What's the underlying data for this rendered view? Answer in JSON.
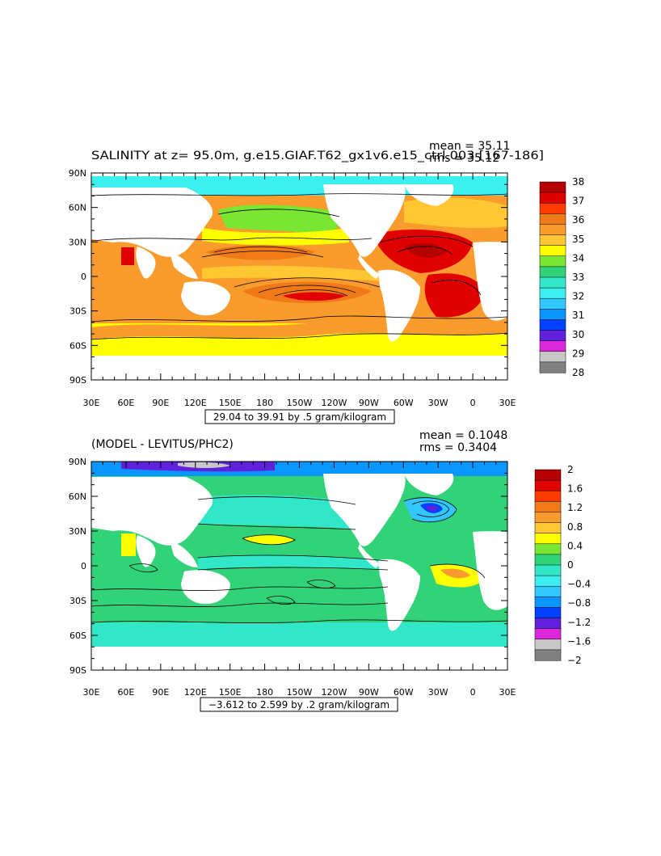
{
  "panels": [
    {
      "id": "top",
      "title": "SALINITY at z=  95.0m, g.e15.GIAF.T62_gx1v6.e15_ctrl.003 [167-186]",
      "stats": {
        "mean": "mean = 35.11",
        "rms": "rms = 35.12"
      },
      "range_label": "29.04 to 39.91 by .5 gram/kilogram",
      "lat_labels": [
        "90N",
        "60N",
        "30N",
        "0",
        "30S",
        "60S",
        "90S"
      ],
      "lon_labels": [
        "30E",
        "60E",
        "90E",
        "120E",
        "150E",
        "180",
        "150W",
        "120W",
        "90W",
        "60W",
        "30W",
        "0",
        "30E"
      ],
      "colorbar": {
        "labels": [
          "38",
          "37",
          "36",
          "35",
          "34",
          "33",
          "32",
          "31",
          "30",
          "29",
          "28"
        ],
        "colors": [
          "#b40000",
          "#e10000",
          "#ff3c00",
          "#f07a18",
          "#fa9b2d",
          "#ffc832",
          "#ffff00",
          "#78e632",
          "#32d278",
          "#32e6c8",
          "#3cf0f0",
          "#32c8ff",
          "#0a96ff",
          "#0040ff",
          "#6020dc",
          "#dc28dc",
          "#c8c8c8",
          "#808080"
        ]
      }
    },
    {
      "id": "bottom",
      "title": "(MODEL - LEVITUS/PHC2)",
      "stats": {
        "mean": "mean = 0.1048",
        "rms": "rms = 0.3404"
      },
      "range_label": "−3.612 to 2.599 by .2 gram/kilogram",
      "lat_labels": [
        "90N",
        "60N",
        "30N",
        "0",
        "30S",
        "60S",
        "90S"
      ],
      "lon_labels": [
        "30E",
        "60E",
        "90E",
        "120E",
        "150E",
        "180",
        "150W",
        "120W",
        "90W",
        "60W",
        "30W",
        "0",
        "30E"
      ],
      "colorbar": {
        "labels": [
          "2",
          "1.6",
          "1.2",
          "0.8",
          "0.4",
          "0",
          "−0.4",
          "−0.8",
          "−1.2",
          "−1.6",
          "−2"
        ],
        "colors": [
          "#b40000",
          "#e10000",
          "#ff3c00",
          "#f07a18",
          "#fa9b2d",
          "#ffc832",
          "#ffff00",
          "#78e632",
          "#32d278",
          "#32e6c8",
          "#3cf0f0",
          "#32c8ff",
          "#0a96ff",
          "#0040ff",
          "#6020dc",
          "#dc28dc",
          "#c8c8c8",
          "#808080"
        ]
      }
    }
  ],
  "palette": {
    "land": "#ffffff",
    "contour": "#000000"
  }
}
